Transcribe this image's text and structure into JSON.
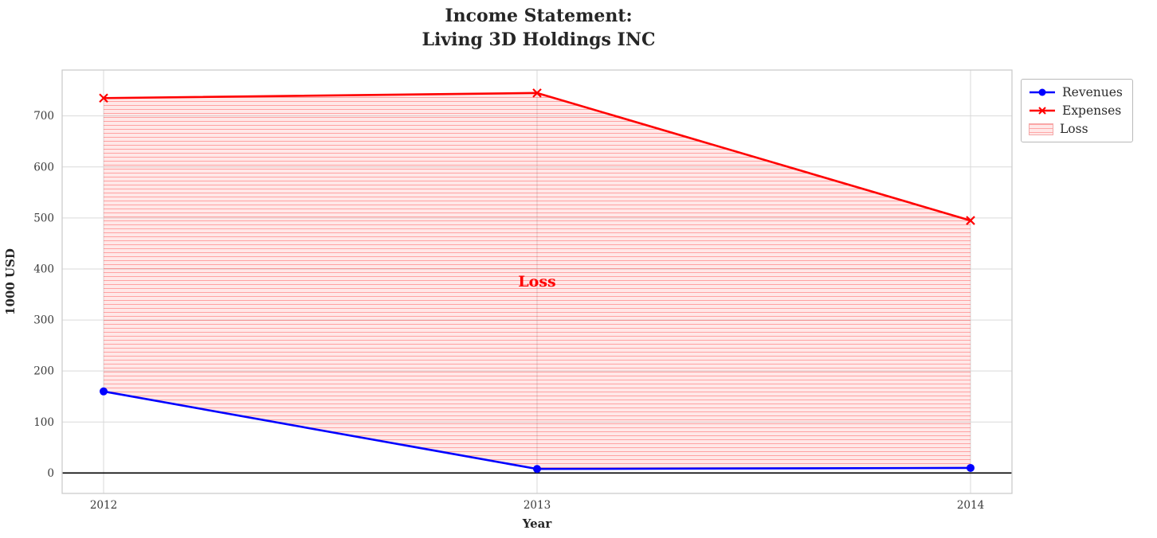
{
  "figure": {
    "title_lines": [
      "Income Statement:",
      "Living 3D Holdings INC"
    ]
  },
  "chart_data": {
    "type": "line",
    "title": "Income Statement: Living 3D Holdings INC",
    "xlabel": "Year",
    "ylabel": "1000 USD",
    "x": [
      "2012",
      "2013",
      "2014"
    ],
    "series": [
      {
        "name": "Revenues",
        "values": [
          160,
          8,
          10
        ],
        "color": "#0000ff",
        "marker": "circle"
      },
      {
        "name": "Expenses",
        "values": [
          735,
          745,
          495
        ],
        "color": "#ff0000",
        "marker": "x"
      }
    ],
    "fill_between": {
      "label": "Loss",
      "upper_series": "Expenses",
      "lower_series": "Revenues",
      "color": "#ff0000",
      "style": "horizontal-hatch"
    },
    "annotation": {
      "text": "Loss",
      "x": "2013",
      "y": 375,
      "color": "#ff0000"
    },
    "yticks": [
      0,
      100,
      200,
      300,
      400,
      500,
      600,
      700
    ],
    "ylim": [
      -40,
      790
    ],
    "zero_line": true,
    "grid": true,
    "legend": {
      "position": "upper-right-outside",
      "items": [
        {
          "label": "Revenues",
          "type": "line-circle",
          "color": "#0000ff"
        },
        {
          "label": "Expenses",
          "type": "line-x",
          "color": "#ff0000"
        },
        {
          "label": "Loss",
          "type": "patch",
          "color": "#ff0000"
        }
      ]
    }
  }
}
